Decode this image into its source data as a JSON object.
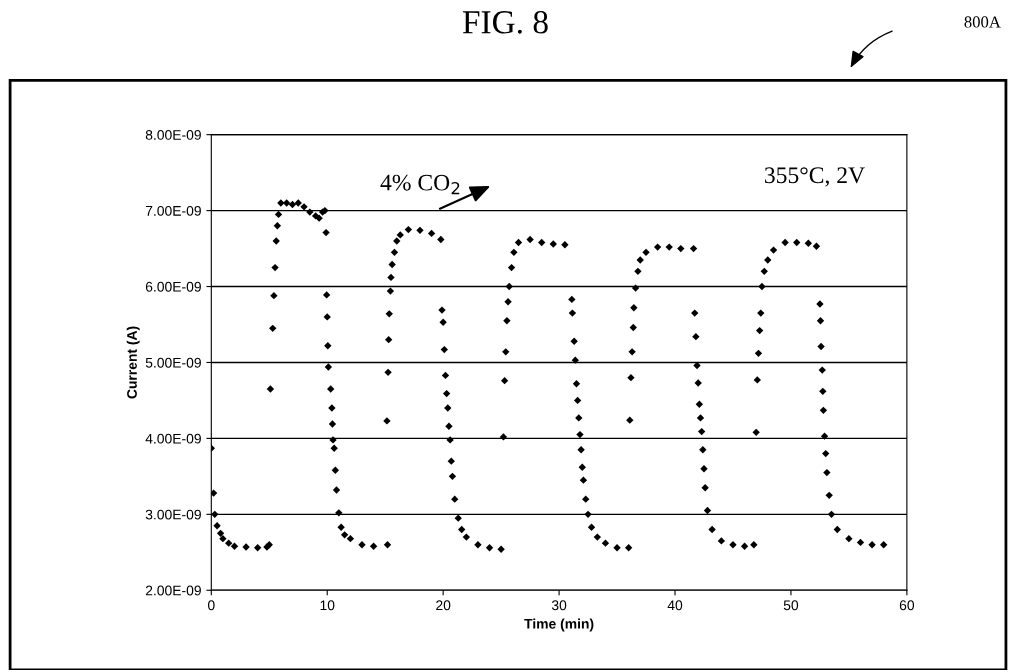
{
  "chart_data": {
    "type": "scatter",
    "title": "FIG. 8",
    "xlabel": "Time (min)",
    "ylabel": "Current (A)",
    "xlim": [
      0,
      60
    ],
    "xticks": [
      0,
      10,
      20,
      30,
      40,
      50,
      60
    ],
    "ylim": [
      2e-09,
      8e-09
    ],
    "yticks": [
      {
        "value": 2e-09,
        "label": "2.00E-09"
      },
      {
        "value": 3e-09,
        "label": "3.00E-09"
      },
      {
        "value": 4e-09,
        "label": "4.00E-09"
      },
      {
        "value": 5e-09,
        "label": "5.00E-09"
      },
      {
        "value": 6e-09,
        "label": "6.00E-09"
      },
      {
        "value": 7e-09,
        "label": "7.00E-09"
      },
      {
        "value": 8e-09,
        "label": "8.00E-09"
      }
    ],
    "grid": "y",
    "marker": "diamond",
    "annotations": [
      "4% CO$_{2}$",
      "355°C, 2V",
      "800A"
    ],
    "series": [
      {
        "color": "#000000",
        "x": [
          0,
          0.2,
          0.3,
          0.5,
          0.8,
          1,
          1.5,
          2,
          3,
          4,
          4.8,
          5,
          5.1,
          5.3,
          5.4,
          5.5,
          5.6,
          5.7,
          5.8,
          6,
          6.5,
          7,
          7.5,
          8,
          8.5,
          9,
          9.3,
          9.6,
          9.8,
          9.9,
          9.95,
          10,
          10.05,
          10.1,
          10.3,
          10.4,
          10.45,
          10.5,
          10.6,
          10.7,
          10.8,
          11,
          11.2,
          11.5,
          12,
          13,
          14,
          15.2,
          15.15,
          15.25,
          15.3,
          15.35,
          15.45,
          15.5,
          15.6,
          15.8,
          16,
          16.3,
          17,
          18,
          19,
          19.8,
          19.9,
          20,
          20.1,
          20.2,
          20.3,
          20.4,
          20.5,
          20.6,
          20.7,
          20.8,
          21,
          21.3,
          21.6,
          22,
          23,
          24,
          25,
          25.2,
          25.3,
          25.4,
          25.5,
          25.6,
          25.7,
          25.9,
          26.1,
          26.5,
          27.5,
          28.5,
          29.5,
          30.5,
          31.1,
          31.15,
          31.3,
          31.4,
          31.5,
          31.6,
          31.7,
          31.8,
          31.9,
          32,
          32.1,
          32.3,
          32.5,
          32.8,
          33.3,
          34,
          35,
          36,
          36.1,
          36.2,
          36.3,
          36.4,
          36.45,
          36.6,
          36.8,
          37,
          37.5,
          38.5,
          39.5,
          40.5,
          41.6,
          41.7,
          41.8,
          41.9,
          42,
          42.1,
          42.2,
          42.3,
          42.4,
          42.5,
          42.6,
          42.8,
          43.2,
          44,
          45,
          46,
          46.8,
          47,
          47.1,
          47.2,
          47.3,
          47.4,
          47.5,
          47.7,
          48,
          48.5,
          49.5,
          50.5,
          51.5,
          52.2,
          52.5,
          52.55,
          52.6,
          52.7,
          52.75,
          52.8,
          52.9,
          53,
          53.1,
          53.3,
          53.5,
          54,
          55,
          56,
          57,
          58
        ],
        "values": [
          3.87e-09,
          3.28e-09,
          3e-09,
          2.85e-09,
          2.75e-09,
          2.68e-09,
          2.62e-09,
          2.58e-09,
          2.57e-09,
          2.56e-09,
          2.57e-09,
          2.6e-09,
          4.65e-09,
          5.45e-09,
          5.88e-09,
          6.25e-09,
          6.6e-09,
          6.8e-09,
          6.95e-09,
          7.1e-09,
          7.1e-09,
          7.08e-09,
          7.1e-09,
          7.05e-09,
          6.98e-09,
          6.93e-09,
          6.9e-09,
          6.98e-09,
          7e-09,
          6.71e-09,
          5.89e-09,
          5.6e-09,
          5.22e-09,
          4.94e-09,
          4.65e-09,
          4.4e-09,
          4.19e-09,
          3.98e-09,
          3.87e-09,
          3.58e-09,
          3.32e-09,
          3.02e-09,
          2.83e-09,
          2.73e-09,
          2.68e-09,
          2.6e-09,
          2.58e-09,
          2.6e-09,
          4.23e-09,
          4.87e-09,
          5.3e-09,
          5.64e-09,
          5.94e-09,
          6.12e-09,
          6.29e-09,
          6.45e-09,
          6.6e-09,
          6.68e-09,
          6.75e-09,
          6.74e-09,
          6.7e-09,
          6.62e-09,
          5.69e-09,
          5.53e-09,
          5.17e-09,
          4.83e-09,
          4.59e-09,
          4.4e-09,
          4.16e-09,
          3.98e-09,
          3.7e-09,
          3.5e-09,
          3.2e-09,
          2.95e-09,
          2.8e-09,
          2.7e-09,
          2.6e-09,
          2.56e-09,
          2.54e-09,
          4.02e-09,
          4.76e-09,
          5.14e-09,
          5.55e-09,
          5.8e-09,
          6e-09,
          6.25e-09,
          6.45e-09,
          6.58e-09,
          6.62e-09,
          6.58e-09,
          6.56e-09,
          6.55e-09,
          5.83e-09,
          5.65e-09,
          5.28e-09,
          5.03e-09,
          4.72e-09,
          4.5e-09,
          4.27e-09,
          4.05e-09,
          3.85e-09,
          3.62e-09,
          3.45e-09,
          3.2e-09,
          3e-09,
          2.83e-09,
          2.7e-09,
          2.62e-09,
          2.56e-09,
          2.56e-09,
          4.24e-09,
          4.8e-09,
          5.14e-09,
          5.46e-09,
          5.72e-09,
          5.98e-09,
          6.2e-09,
          6.35e-09,
          6.45e-09,
          6.52e-09,
          6.52e-09,
          6.5e-09,
          6.5e-09,
          5.65e-09,
          5.34e-09,
          4.96e-09,
          4.73e-09,
          4.45e-09,
          4.27e-09,
          4.09e-09,
          3.85e-09,
          3.6e-09,
          3.35e-09,
          3.05e-09,
          2.8e-09,
          2.65e-09,
          2.6e-09,
          2.58e-09,
          2.6e-09,
          4.08e-09,
          4.77e-09,
          5.12e-09,
          5.42e-09,
          5.65e-09,
          6e-09,
          6.2e-09,
          6.35e-09,
          6.48e-09,
          6.58e-09,
          6.58e-09,
          6.57e-09,
          6.53e-09,
          5.77e-09,
          5.55e-09,
          5.21e-09,
          4.9e-09,
          4.62e-09,
          4.37e-09,
          4.03e-09,
          3.8e-09,
          3.55e-09,
          3.25e-09,
          3e-09,
          2.8e-09,
          2.68e-09,
          2.63e-09,
          2.6e-09,
          2.6e-09
        ]
      }
    ]
  }
}
